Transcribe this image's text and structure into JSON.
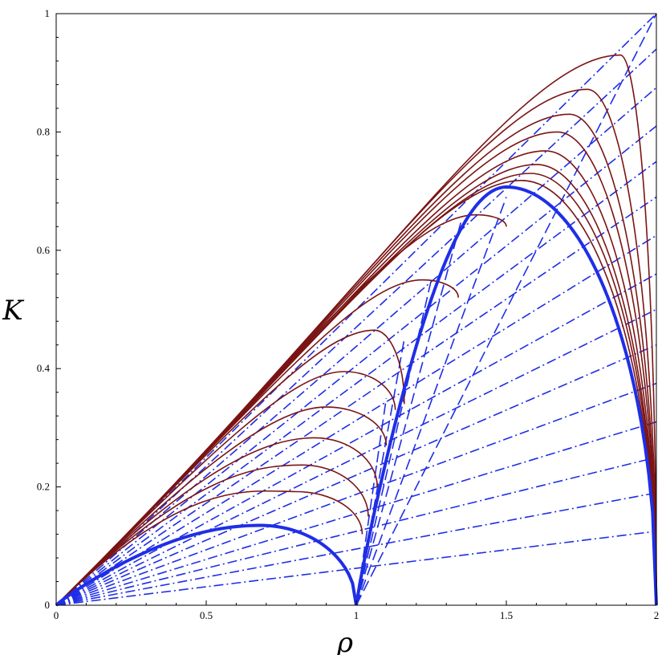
{
  "chart_data": {
    "type": "line",
    "title": "",
    "xlabel": "ρ",
    "ylabel": "K",
    "xlim": [
      0,
      2
    ],
    "ylim": [
      0,
      1
    ],
    "x_ticks": [
      "0",
      "0.5",
      "1",
      "1.5",
      "2"
    ],
    "y_ticks": [
      "0",
      "0.2",
      "0.4",
      "0.6",
      "0.8",
      "1"
    ],
    "grid": false,
    "legend": "none",
    "colors": {
      "main_curve": "#1f2ee6",
      "family": "#7a1414",
      "lines": "#1f2ee6"
    },
    "main_curves": [
      {
        "kind": "arch",
        "x_start": 0,
        "x_end": 1,
        "peak_x": 0.68,
        "peak_y": 0.135
      },
      {
        "kind": "arch",
        "x_start": 1,
        "x_end": 2,
        "peak_x": 1.5,
        "peak_y": 0.707
      }
    ],
    "dashed_rays_from_origin": {
      "end_points": [
        [
          2.0,
          1.0
        ],
        [
          2.0,
          0.94
        ],
        [
          2.0,
          0.875
        ],
        [
          2.0,
          0.81
        ],
        [
          2.0,
          0.75
        ],
        [
          2.0,
          0.69
        ],
        [
          2.0,
          0.625
        ],
        [
          2.0,
          0.56
        ],
        [
          2.0,
          0.5
        ],
        [
          2.0,
          0.44
        ],
        [
          2.0,
          0.375
        ],
        [
          2.0,
          0.31
        ],
        [
          2.0,
          0.25
        ],
        [
          2.0,
          0.19
        ],
        [
          2.0,
          0.125
        ]
      ]
    },
    "dashed_rays_from_1": {
      "end_points": [
        [
          2.0,
          1.0
        ],
        [
          1.5,
          0.69
        ],
        [
          1.35,
          0.65
        ],
        [
          1.25,
          0.55
        ],
        [
          1.16,
          0.45
        ],
        [
          1.1,
          0.35
        ]
      ]
    },
    "family_curves": [
      {
        "x_start": 0,
        "x_end": 1.02,
        "peak_x": 0.8,
        "peak_y": 0.192,
        "end_y": 0.12
      },
      {
        "x_start": 0,
        "x_end": 1.04,
        "peak_x": 0.82,
        "peak_y": 0.237,
        "end_y": 0.15
      },
      {
        "x_start": 0,
        "x_end": 1.07,
        "peak_x": 0.86,
        "peak_y": 0.283,
        "end_y": 0.2
      },
      {
        "x_start": 0,
        "x_end": 1.1,
        "peak_x": 0.9,
        "peak_y": 0.335,
        "end_y": 0.27
      },
      {
        "x_start": 0,
        "x_end": 1.13,
        "peak_x": 0.96,
        "peak_y": 0.395,
        "end_y": 0.33
      },
      {
        "x_start": 0,
        "x_end": 1.16,
        "peak_x": 1.06,
        "peak_y": 0.465,
        "end_y": 0.34
      },
      {
        "x_start": 0,
        "x_end": 1.34,
        "peak_x": 1.22,
        "peak_y": 0.55,
        "end_y": 0.52
      },
      {
        "x_start": 0,
        "x_end": 1.5,
        "peak_x": 1.4,
        "peak_y": 0.66,
        "end_y": 0.64
      },
      {
        "x_start": 0,
        "x_end": 2.0,
        "peak_x": 1.55,
        "peak_y": 0.718,
        "end_y": 0.0
      },
      {
        "x_start": 0,
        "x_end": 2.0,
        "peak_x": 1.58,
        "peak_y": 0.73,
        "end_y": 0.0
      },
      {
        "x_start": 0,
        "x_end": 2.0,
        "peak_x": 1.6,
        "peak_y": 0.745,
        "end_y": 0.0
      },
      {
        "x_start": 0,
        "x_end": 2.0,
        "peak_x": 1.63,
        "peak_y": 0.768,
        "end_y": 0.0
      },
      {
        "x_start": 0,
        "x_end": 2.0,
        "peak_x": 1.67,
        "peak_y": 0.8,
        "end_y": 0.0
      },
      {
        "x_start": 0,
        "x_end": 2.0,
        "peak_x": 1.71,
        "peak_y": 0.83,
        "end_y": 0.0
      },
      {
        "x_start": 0,
        "x_end": 2.0,
        "peak_x": 1.77,
        "peak_y": 0.872,
        "end_y": 0.0
      },
      {
        "x_start": 0,
        "x_end": 2.0,
        "peak_x": 1.88,
        "peak_y": 0.93,
        "end_y": 0.0
      }
    ]
  }
}
